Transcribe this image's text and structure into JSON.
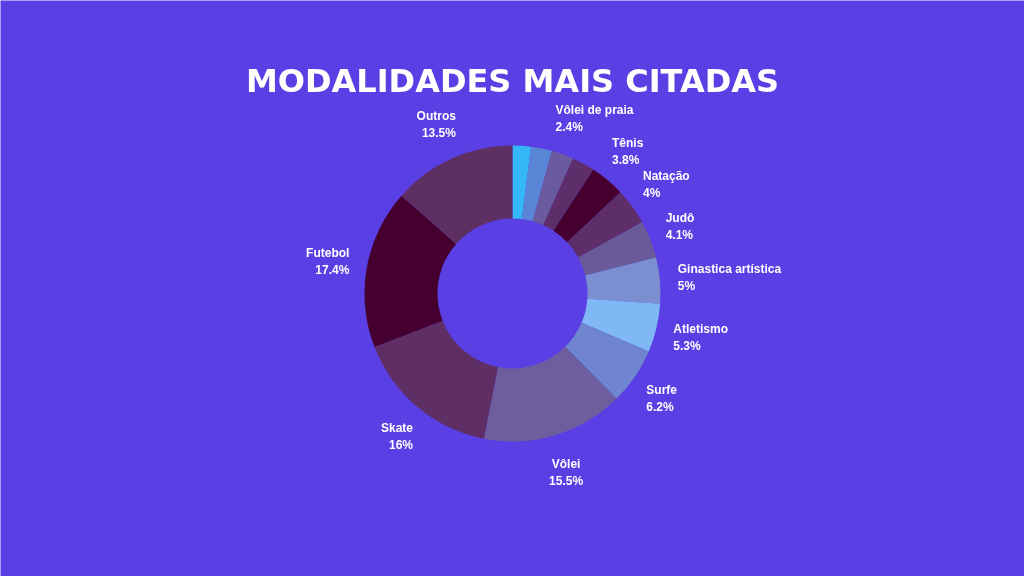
{
  "chart_data": {
    "type": "donut",
    "title": "MODALIDADES MAIS CITADAS",
    "categories": [
      null,
      null,
      "Vôlei de praia",
      null,
      "Tênis",
      "Natação",
      "Judô",
      "Ginastica artística",
      "Atletismo",
      "Surfe",
      "Vôlei",
      "Skate",
      "Futebol",
      "Outros"
    ],
    "values": [
      2.0,
      2.3,
      2.4,
      2.5,
      3.8,
      4,
      4.1,
      5,
      5.3,
      6.2,
      15.5,
      16,
      17.4,
      13.5
    ],
    "value_labels": [
      null,
      null,
      "2.4%",
      null,
      "3.8%",
      "4%",
      "4.1%",
      "5%",
      "5.3%",
      "6.2%",
      "15.5%",
      "16%",
      "17.4%",
      "13.5%"
    ],
    "colors": [
      "#33b8f5",
      "#5a86d8",
      "#6a5a9e",
      "#5e2e6a",
      "#46002f",
      "#5e2e6a",
      "#6b5a9a",
      "#7a8ed0",
      "#7fb8f5",
      "#6f85d0",
      "#6e5e9e",
      "#5e2e65",
      "#46002f",
      "#5e2f62"
    ]
  }
}
